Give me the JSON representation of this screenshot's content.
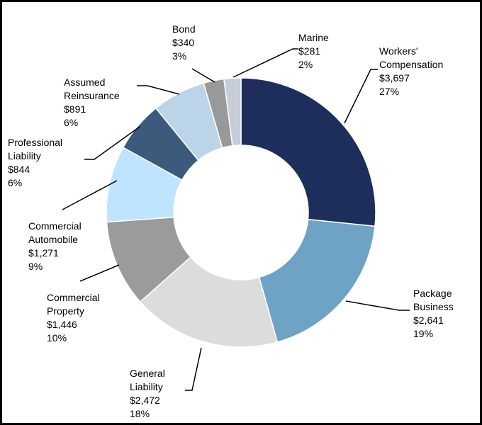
{
  "chart_data": {
    "type": "pie",
    "variant": "donut",
    "categories": [
      "Workers' Compensation",
      "Package Business",
      "General Liability",
      "Commercial Property",
      "Commercial Automobile",
      "Professional Liability",
      "Assumed Reinsurance",
      "Bond",
      "Marine"
    ],
    "values": [
      3697,
      2641,
      2472,
      1446,
      1271,
      844,
      891,
      340,
      281
    ],
    "legend_position": "none",
    "slices": [
      {
        "name_lines": [
          "Workers'",
          "Compensation"
        ],
        "value": 3697,
        "value_label": "$3,697",
        "pct_label": "27%",
        "color": "#1d2e5c"
      },
      {
        "name_lines": [
          "Package",
          "Business"
        ],
        "value": 2641,
        "value_label": "$2,641",
        "pct_label": "19%",
        "color": "#6fa3c6"
      },
      {
        "name_lines": [
          "General",
          "Liability"
        ],
        "value": 2472,
        "value_label": "$2,472",
        "pct_label": "18%",
        "color": "#dcdcdc"
      },
      {
        "name_lines": [
          "Commercial",
          "Property"
        ],
        "value": 1446,
        "value_label": "$1,446",
        "pct_label": "10%",
        "color": "#9b9b9b"
      },
      {
        "name_lines": [
          "Commercial",
          "Automobile"
        ],
        "value": 1271,
        "value_label": "$1,271",
        "pct_label": "9%",
        "color": "#bfe4ff"
      },
      {
        "name_lines": [
          "Professional",
          "Liability"
        ],
        "value": 844,
        "value_label": "$844",
        "pct_label": "6%",
        "color": "#3b5a7c"
      },
      {
        "name_lines": [
          "Assumed",
          "Reinsurance"
        ],
        "value": 891,
        "value_label": "$891",
        "pct_label": "6%",
        "color": "#bcd4e8"
      },
      {
        "name_lines": [
          "Bond"
        ],
        "value": 340,
        "value_label": "$340",
        "pct_label": "3%",
        "color": "#999999"
      },
      {
        "name_lines": [
          "Marine"
        ],
        "value": 281,
        "value_label": "$281",
        "pct_label": "2%",
        "color": "#c6ccd8"
      }
    ]
  }
}
